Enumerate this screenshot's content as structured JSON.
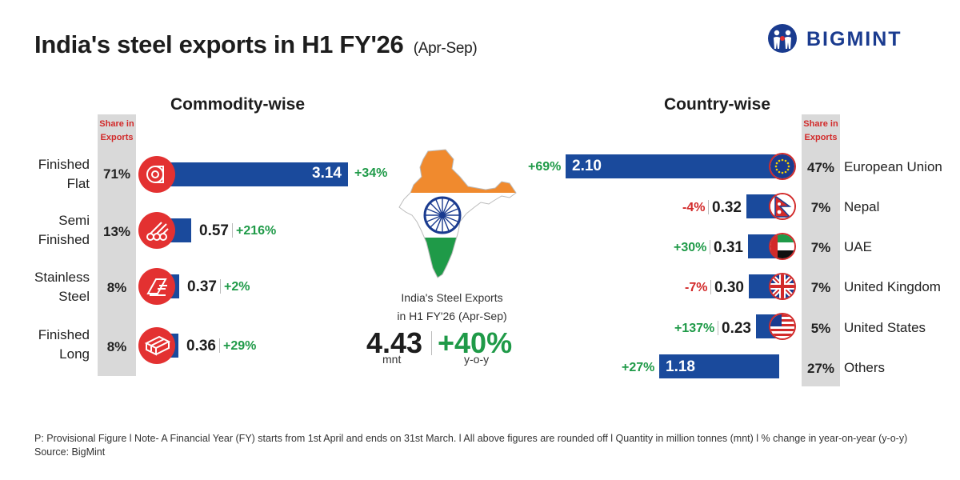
{
  "title": "India's steel exports in H1 FY'26",
  "title_sub": "(Apr-Sep)",
  "brand": "BIGMINT",
  "commodity_title": "Commodity-wise",
  "country_title": "Country-wise",
  "share_head_line1": "Share in",
  "share_head_line2": "Exports",
  "center": {
    "line1": "India's Steel Exports",
    "line2": "in H1 FY'26 (Apr-Sep)",
    "total": "4.43",
    "total_unit": "mnt",
    "change": "+40%",
    "change_unit": "y-o-y"
  },
  "footnote": "P: Provisional Figure  l  Note- A Financial Year (FY) starts from 1st April and ends on 31st March.  l  All above figures are rounded off  l  Quantity in million tonnes (mnt)  l  % change in year-on-year (y-o-y)",
  "source": "Source: BigMint",
  "colors": {
    "bar": "#1a4a9c",
    "positive": "#1f9a48",
    "negative": "#d22a2a",
    "share_bg": "#d9d9d9",
    "icon_bg": "#e33131"
  },
  "chart_data": [
    {
      "type": "bar",
      "title": "Commodity-wise",
      "categories": [
        "Finished Flat",
        "Semi Finished",
        "Stainless Steel",
        "Finished Long"
      ],
      "category_lines": [
        [
          "Finished",
          "Flat"
        ],
        [
          "Semi",
          "Finished"
        ],
        [
          "Stainless",
          "Steel"
        ],
        [
          "Finished",
          "Long"
        ]
      ],
      "values": [
        3.14,
        0.57,
        0.37,
        0.36
      ],
      "value_labels": [
        "3.14",
        "0.57",
        "0.37",
        "0.36"
      ],
      "changes": [
        "+34%",
        "+216%",
        "+2%",
        "+29%"
      ],
      "shares": [
        "71%",
        "13%",
        "8%",
        "8%"
      ],
      "icons": [
        "coil-icon",
        "pipes-icon",
        "stainless-sheet-icon",
        "bars-bundle-icon"
      ]
    },
    {
      "type": "bar",
      "title": "Country-wise",
      "categories": [
        "European Union",
        "Nepal",
        "UAE",
        "United Kingdom",
        "United States",
        "Others"
      ],
      "values": [
        2.1,
        0.32,
        0.31,
        0.3,
        0.23,
        1.18
      ],
      "value_labels": [
        "2.10",
        "0.32",
        "0.31",
        "0.30",
        "0.23",
        "1.18"
      ],
      "changes": [
        "+69%",
        "-4%",
        "+30%",
        "-7%",
        "+137%",
        "+27%"
      ],
      "shares": [
        "47%",
        "7%",
        "7%",
        "7%",
        "5%",
        "27%"
      ],
      "flags": [
        "eu-flag-icon",
        "nepal-flag-icon",
        "uae-flag-icon",
        "uk-flag-icon",
        "us-flag-icon",
        ""
      ]
    }
  ]
}
